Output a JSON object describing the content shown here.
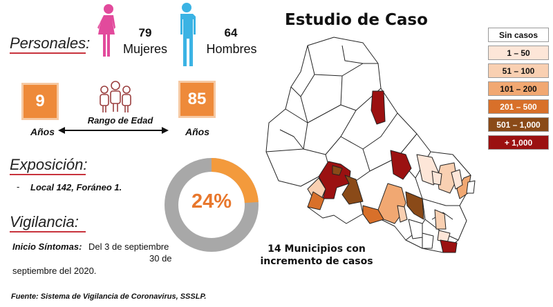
{
  "personales": {
    "title": "Personales:",
    "mujeres_count": "79",
    "mujeres_label": "Mujeres",
    "hombres_count": "64",
    "hombres_label": "Hombres"
  },
  "edad": {
    "min": "9",
    "max": "85",
    "unit_left": "Años",
    "unit_right": "Años",
    "label": "Rango de Edad"
  },
  "exposicion": {
    "title": "Exposición:",
    "dash": "-",
    "item": "Local 142, Foráneo 1."
  },
  "vigilancia": {
    "title": "Vigilancia:",
    "inicio_label": "Inicio Síntomas:",
    "inicio_text": "Del 3 de septiembre",
    "inicio_text2": "30 de",
    "inicio_text3": "septiembre del 2020."
  },
  "donut": {
    "value_label": "24%",
    "percent": 24,
    "color_fill": "#f39a3c",
    "color_rest": "#a8a8a8"
  },
  "map": {
    "title": "Estudio de Caso",
    "municipios_line1": "14 Municipios con",
    "municipios_line2": "incremento de casos"
  },
  "legend": [
    {
      "label": "Sin casos",
      "color": "#ffffff"
    },
    {
      "label": "1 – 50",
      "color": "#fde6d8"
    },
    {
      "label": "51 – 100",
      "color": "#f9d0b2"
    },
    {
      "label": "101 – 200",
      "color": "#f1a872"
    },
    {
      "label": "201 – 500",
      "color": "#d8702a"
    },
    {
      "label": "501 – 1,000",
      "color": "#8a4a18"
    },
    {
      "label": "+ 1,000",
      "color": "#9b1111"
    }
  ],
  "footer": {
    "source": "Fuente: Sistema de Vigilancia de Coronavirus, SSSLP."
  },
  "colors": {
    "female": "#e24a9c",
    "male": "#3bb3e4",
    "age_box": "#ee8a3a",
    "accent_underline": "#c8323c"
  }
}
